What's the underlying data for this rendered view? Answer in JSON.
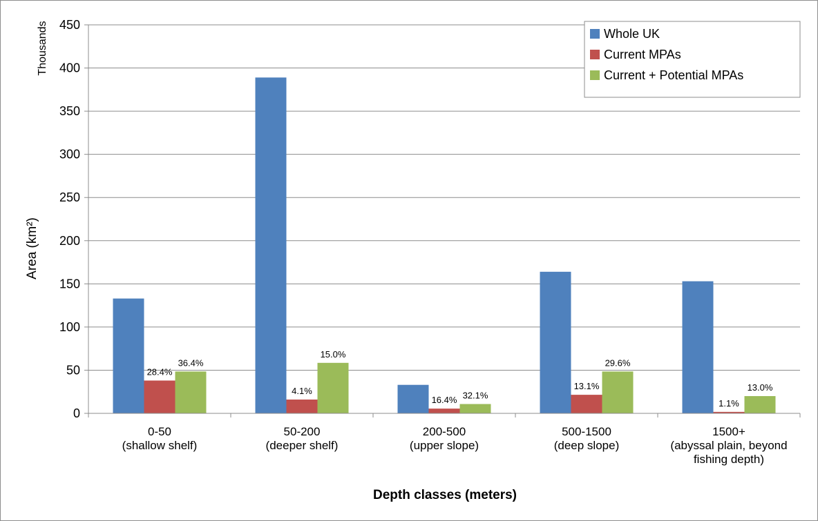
{
  "chart_data": {
    "type": "bar",
    "xlabel": "Depth classes (meters)",
    "ylabel": "Area (km²)",
    "ylabel_units": "Thousands",
    "ylim": [
      0,
      450
    ],
    "yticks": [
      0,
      50,
      100,
      150,
      200,
      250,
      300,
      350,
      400,
      450
    ],
    "grid": true,
    "legend_position": "top-right",
    "categories": [
      [
        "0-50",
        "(shallow shelf)"
      ],
      [
        "50-200",
        "(deeper shelf)"
      ],
      [
        "200-500",
        "(upper slope)"
      ],
      [
        "500-1500",
        "(deep slope)"
      ],
      [
        "1500+",
        "(abyssal plain, beyond",
        "fishing depth)"
      ]
    ],
    "series": [
      {
        "name": "Whole UK",
        "color": "#4f81bd",
        "values": [
          133,
          389,
          33,
          164,
          153
        ],
        "labels": [
          "",
          "",
          "",
          "",
          ""
        ]
      },
      {
        "name": "Current MPAs",
        "color": "#c0504d",
        "values": [
          38,
          16,
          5.5,
          21.5,
          1.7
        ],
        "labels": [
          "28.4%",
          "4.1%",
          "16.4%",
          "13.1%",
          "1.1%"
        ]
      },
      {
        "name": "Current + Potential MPAs",
        "color": "#9bbb59",
        "values": [
          48.5,
          58.5,
          10.8,
          48.5,
          20
        ],
        "labels": [
          "36.4%",
          "15.0%",
          "32.1%",
          "29.6%",
          "13.0%"
        ]
      }
    ]
  }
}
